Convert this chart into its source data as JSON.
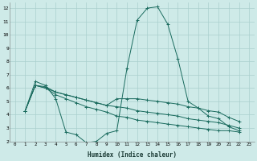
{
  "xlabel": "Humidex (Indice chaleur)",
  "bg_color": "#ceeae8",
  "grid_color": "#aacfcd",
  "line_color": "#1a6b5e",
  "xlim": [
    -0.5,
    23.5
  ],
  "ylim": [
    2,
    12.4
  ],
  "yticks": [
    2,
    3,
    4,
    5,
    6,
    7,
    8,
    9,
    10,
    11,
    12
  ],
  "xticks": [
    0,
    1,
    2,
    3,
    4,
    5,
    6,
    7,
    8,
    9,
    10,
    11,
    12,
    13,
    14,
    15,
    16,
    17,
    18,
    19,
    20,
    21,
    22,
    23
  ],
  "series": [
    {
      "x": [
        1,
        2,
        3,
        4,
        5,
        6,
        7,
        8,
        9,
        10,
        11,
        12,
        13,
        14,
        15,
        16,
        17,
        18,
        19,
        20,
        21,
        22
      ],
      "y": [
        4.3,
        6.5,
        6.2,
        5.2,
        2.7,
        2.5,
        1.9,
        2.0,
        2.6,
        2.8,
        7.5,
        11.1,
        12.0,
        12.1,
        10.8,
        8.2,
        5.0,
        4.5,
        3.9,
        3.7,
        3.1,
        2.8
      ]
    },
    {
      "x": [
        1,
        2,
        3,
        4,
        5,
        6,
        7,
        8,
        9,
        10,
        11,
        12,
        13,
        14,
        15,
        16,
        17,
        18,
        19,
        20,
        21,
        22
      ],
      "y": [
        4.3,
        6.2,
        6.1,
        5.7,
        5.5,
        5.3,
        5.1,
        4.9,
        4.7,
        5.2,
        5.2,
        5.2,
        5.1,
        5.0,
        4.9,
        4.8,
        4.6,
        4.5,
        4.3,
        4.2,
        3.8,
        3.5
      ]
    },
    {
      "x": [
        1,
        2,
        3,
        4,
        5,
        6,
        7,
        8,
        9,
        10,
        11,
        12,
        13,
        14,
        15,
        16,
        17,
        18,
        19,
        20,
        21,
        22
      ],
      "y": [
        4.3,
        6.2,
        6.0,
        5.7,
        5.5,
        5.3,
        5.1,
        4.9,
        4.7,
        4.6,
        4.5,
        4.3,
        4.2,
        4.1,
        4.0,
        3.9,
        3.7,
        3.6,
        3.5,
        3.4,
        3.2,
        3.0
      ]
    },
    {
      "x": [
        1,
        2,
        3,
        4,
        5,
        6,
        7,
        8,
        9,
        10,
        11,
        12,
        13,
        14,
        15,
        16,
        17,
        18,
        19,
        20,
        21,
        22
      ],
      "y": [
        4.3,
        6.2,
        6.0,
        5.5,
        5.2,
        4.9,
        4.6,
        4.4,
        4.2,
        3.9,
        3.8,
        3.6,
        3.5,
        3.4,
        3.3,
        3.2,
        3.1,
        3.0,
        2.9,
        2.8,
        2.8,
        2.7
      ]
    }
  ]
}
